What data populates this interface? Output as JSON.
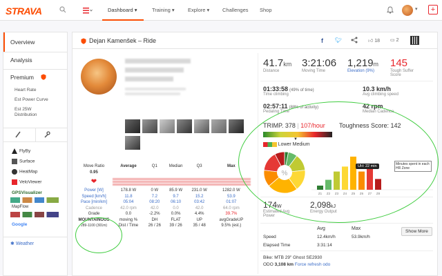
{
  "app": {
    "logo": "STRAVA"
  },
  "nav": {
    "items": [
      {
        "label": "Dashboard ▾"
      },
      {
        "label": "Training ▾"
      },
      {
        "label": "Explore ▾"
      },
      {
        "label": "Challenges"
      },
      {
        "label": "Shop"
      }
    ]
  },
  "sidebar": {
    "overview": "Overview",
    "analysis": "Analysis",
    "premium": "Premium",
    "premium_items": [
      "Heart Rate",
      "Est Power Curve",
      "Est 25W",
      "Distribution"
    ],
    "tools": [
      "FlyBy",
      "Surface",
      "HeatMap",
      "VeloViewer",
      "GPSVisualizer",
      "MapFlow",
      "Google"
    ],
    "weather": "Weather"
  },
  "header": {
    "athlete": "Dejan Kamenšek – Ride",
    "kudos_count": "18",
    "comments_count": "2"
  },
  "stats": {
    "distance": {
      "value": "41.7",
      "unit": "km",
      "label": "Distance"
    },
    "moving_time": {
      "value": "3:21:06",
      "label": "Moving Time"
    },
    "elevation": {
      "value": "1,219",
      "unit": "m",
      "label": "Elevation (9%)"
    },
    "suffer": {
      "value": "145",
      "label": "Tough Suffer Score"
    },
    "time_climbing": {
      "value": "01:33:58",
      "note": "(49% of time)",
      "label": "Time climbing"
    },
    "avg_climbing_speed": {
      "value": "10.3 km/h",
      "label": "Avg climbing speed"
    },
    "pedaling_time": {
      "value": "02:57:11",
      "note": "(88% of activity)",
      "label": "Pedaling Time"
    },
    "median_cadence": {
      "value": "42 rpm",
      "label": "Median Cadence"
    },
    "trimp": "TRIMP. 378",
    "trimp_rate": "107/hour",
    "toughness": "Toughness Score: 142",
    "lower_medium": "Lower Medium",
    "est_power": {
      "value": "174",
      "unit": "W",
      "label": "Estimated Avg Power"
    },
    "energy": {
      "value": "2,098",
      "unit": "kJ",
      "label": "Energy Output"
    },
    "chart_tooltip": "UH: 22 min",
    "chart_note": "Minutes spent in each HR Zone"
  },
  "table": {
    "headers": [
      "Move Ratio",
      "Average",
      "Q1",
      "Median",
      "Q3",
      "Max"
    ],
    "move_ratio": "0.95",
    "rows": [
      {
        "label": "Power [W]",
        "values": [
          "178.8 W",
          "0 W",
          "85.9 W",
          "231.0 W",
          "1282.0 W"
        ]
      },
      {
        "label": "Speed [km/h]",
        "values": [
          "11.8",
          "7.2",
          "9.7",
          "15.2",
          "53.9"
        ]
      },
      {
        "label": "Pace [min/km]",
        "values": [
          "05:04",
          "08:20",
          "06:10",
          "03:42",
          "01:07"
        ]
      },
      {
        "label": "Cadence",
        "values": [
          "42.0 rpm",
          "42.0",
          "0.0",
          "42.0",
          "64.0 rpm"
        ]
      },
      {
        "label": "Grade",
        "values": [
          "0.0",
          "-2.2%",
          "0.0%",
          "4.4%",
          "39.7%"
        ]
      }
    ],
    "grade_footer": [
      "moving %",
      "DH",
      "FLAT",
      "UP",
      "avgGradeUP"
    ],
    "mountainous": "MOUNTAINOUS",
    "mountainous_sub": "289-1100 (301m)",
    "dist_time_label": "Dist / Time",
    "dist_time": [
      "26 / 26",
      "39 / 26",
      "35 / 48",
      "9.5% (est.)"
    ]
  },
  "summary": {
    "headers": [
      "Avg",
      "Max"
    ],
    "speed_label": "Speed",
    "speed_avg": "12.4km/h",
    "speed_max": "53.9km/h",
    "elapsed_label": "Elapsed Time",
    "elapsed": "3:31:14",
    "show_more": "Show More",
    "bike": "Bike: MTB 29\" Ghost SE2930",
    "odo_label": "ODO",
    "odo": "3,108 km",
    "refresh": "Force refresh odo"
  },
  "hr_zones": [
    {
      "label": "Z1",
      "minutes": 5
    },
    {
      "label": "Z2",
      "minutes": 12
    },
    {
      "label": "Z3",
      "minutes": 22
    },
    {
      "label": "Z4",
      "minutes": 28
    },
    {
      "label": "Z5",
      "minutes": 40
    },
    {
      "label": "Z6",
      "minutes": 22
    },
    {
      "label": "Z7",
      "minutes": 26
    },
    {
      "label": "Z8",
      "minutes": 13
    }
  ]
}
